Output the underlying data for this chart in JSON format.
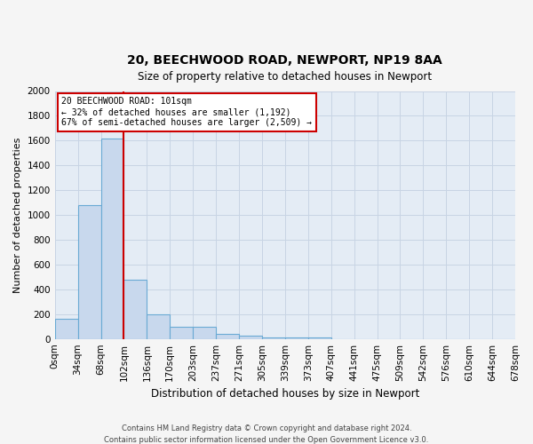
{
  "title": "20, BEECHWOOD ROAD, NEWPORT, NP19 8AA",
  "subtitle": "Size of property relative to detached houses in Newport",
  "xlabel": "Distribution of detached houses by size in Newport",
  "ylabel": "Number of detached properties",
  "footer_line1": "Contains HM Land Registry data © Crown copyright and database right 2024.",
  "footer_line2": "Contains public sector information licensed under the Open Government Licence v3.0.",
  "bin_labels": [
    "0sqm",
    "34sqm",
    "68sqm",
    "102sqm",
    "136sqm",
    "170sqm",
    "203sqm",
    "237sqm",
    "271sqm",
    "305sqm",
    "339sqm",
    "373sqm",
    "407sqm",
    "441sqm",
    "475sqm",
    "509sqm",
    "542sqm",
    "576sqm",
    "610sqm",
    "644sqm",
    "678sqm"
  ],
  "bar_values": [
    165,
    1080,
    1620,
    480,
    200,
    100,
    100,
    40,
    25,
    15,
    15,
    15,
    0,
    0,
    0,
    0,
    0,
    0,
    0,
    0
  ],
  "bar_color": "#c8d8ed",
  "bar_edge_color": "#6aaad4",
  "grid_color": "#c8d4e4",
  "background_color": "#e4ecf5",
  "red_line_x": 2,
  "annotation_text_line1": "20 BEECHWOOD ROAD: 101sqm",
  "annotation_text_line2": "← 32% of detached houses are smaller (1,192)",
  "annotation_text_line3": "67% of semi-detached houses are larger (2,509) →",
  "annotation_box_color": "#cc0000",
  "ylim": [
    0,
    2000
  ],
  "yticks": [
    0,
    200,
    400,
    600,
    800,
    1000,
    1200,
    1400,
    1600,
    1800,
    2000
  ],
  "fig_facecolor": "#f5f5f5"
}
